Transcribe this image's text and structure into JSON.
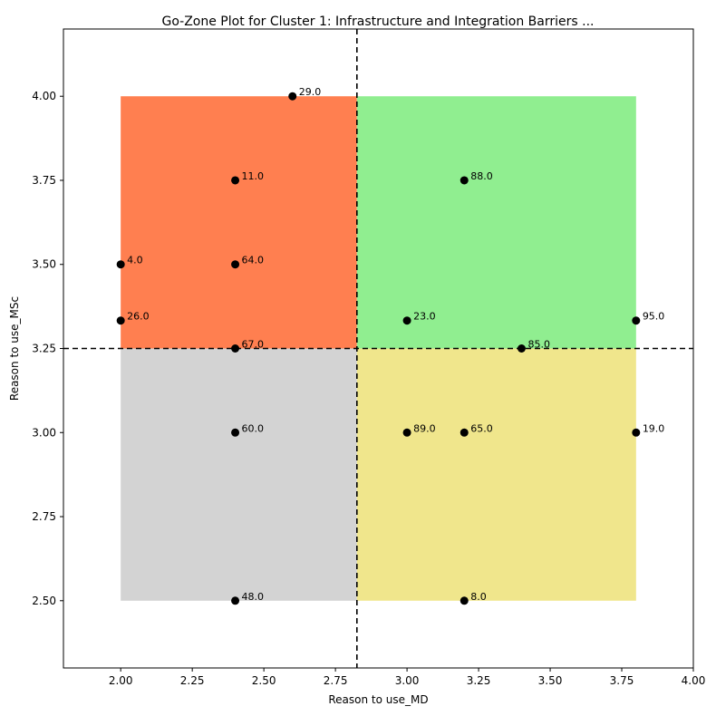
{
  "chart_data": {
    "type": "scatter",
    "title": "Go-Zone Plot for Cluster 1: Infrastructure and Integration Barriers ...",
    "xlabel": "Reason to use_MD",
    "ylabel": "Reason to use_MSc",
    "xlim": [
      1.8,
      4.0
    ],
    "ylim": [
      2.3,
      4.2
    ],
    "xticks": [
      "2.00",
      "2.25",
      "2.50",
      "2.75",
      "3.00",
      "3.25",
      "3.50",
      "3.75",
      "4.00"
    ],
    "xtick_values": [
      2.0,
      2.25,
      2.5,
      2.75,
      3.0,
      3.25,
      3.5,
      3.75,
      4.0
    ],
    "yticks": [
      "2.50",
      "2.75",
      "3.00",
      "3.25",
      "3.50",
      "3.75",
      "4.00"
    ],
    "ytick_values": [
      2.5,
      2.75,
      3.0,
      3.25,
      3.5,
      3.75,
      4.0
    ],
    "x_threshold": 2.825,
    "y_threshold": 3.25,
    "zones": [
      {
        "quadrant": "top-left",
        "x": [
          2.0,
          2.825
        ],
        "y": [
          3.25,
          4.0
        ],
        "color": "#FF7F50"
      },
      {
        "quadrant": "top-right",
        "x": [
          2.825,
          3.8
        ],
        "y": [
          3.25,
          4.0
        ],
        "color": "#90EE90"
      },
      {
        "quadrant": "bottom-left",
        "x": [
          2.0,
          2.825
        ],
        "y": [
          2.5,
          3.25
        ],
        "color": "#D3D3D3"
      },
      {
        "quadrant": "bottom-right",
        "x": [
          2.825,
          3.8
        ],
        "y": [
          2.5,
          3.25
        ],
        "color": "#F0E68C"
      }
    ],
    "grid": false,
    "points": [
      {
        "label": "29.0",
        "x": 2.6,
        "y": 4.0
      },
      {
        "label": "11.0",
        "x": 2.4,
        "y": 3.75
      },
      {
        "label": "88.0",
        "x": 3.2,
        "y": 3.75
      },
      {
        "label": "4.0",
        "x": 2.0,
        "y": 3.5
      },
      {
        "label": "64.0",
        "x": 2.4,
        "y": 3.5
      },
      {
        "label": "26.0",
        "x": 2.0,
        "y": 3.333
      },
      {
        "label": "23.0",
        "x": 3.0,
        "y": 3.333
      },
      {
        "label": "95.0",
        "x": 3.8,
        "y": 3.333
      },
      {
        "label": "67.0",
        "x": 2.4,
        "y": 3.25
      },
      {
        "label": "85.0",
        "x": 3.4,
        "y": 3.25
      },
      {
        "label": "60.0",
        "x": 2.4,
        "y": 3.0
      },
      {
        "label": "89.0",
        "x": 3.0,
        "y": 3.0
      },
      {
        "label": "65.0",
        "x": 3.2,
        "y": 3.0
      },
      {
        "label": "19.0",
        "x": 3.8,
        "y": 3.0
      },
      {
        "label": "48.0",
        "x": 2.4,
        "y": 2.5
      },
      {
        "label": "8.0",
        "x": 3.2,
        "y": 2.5
      }
    ],
    "point_color": "#000000",
    "threshold_line_color": "#000000"
  }
}
